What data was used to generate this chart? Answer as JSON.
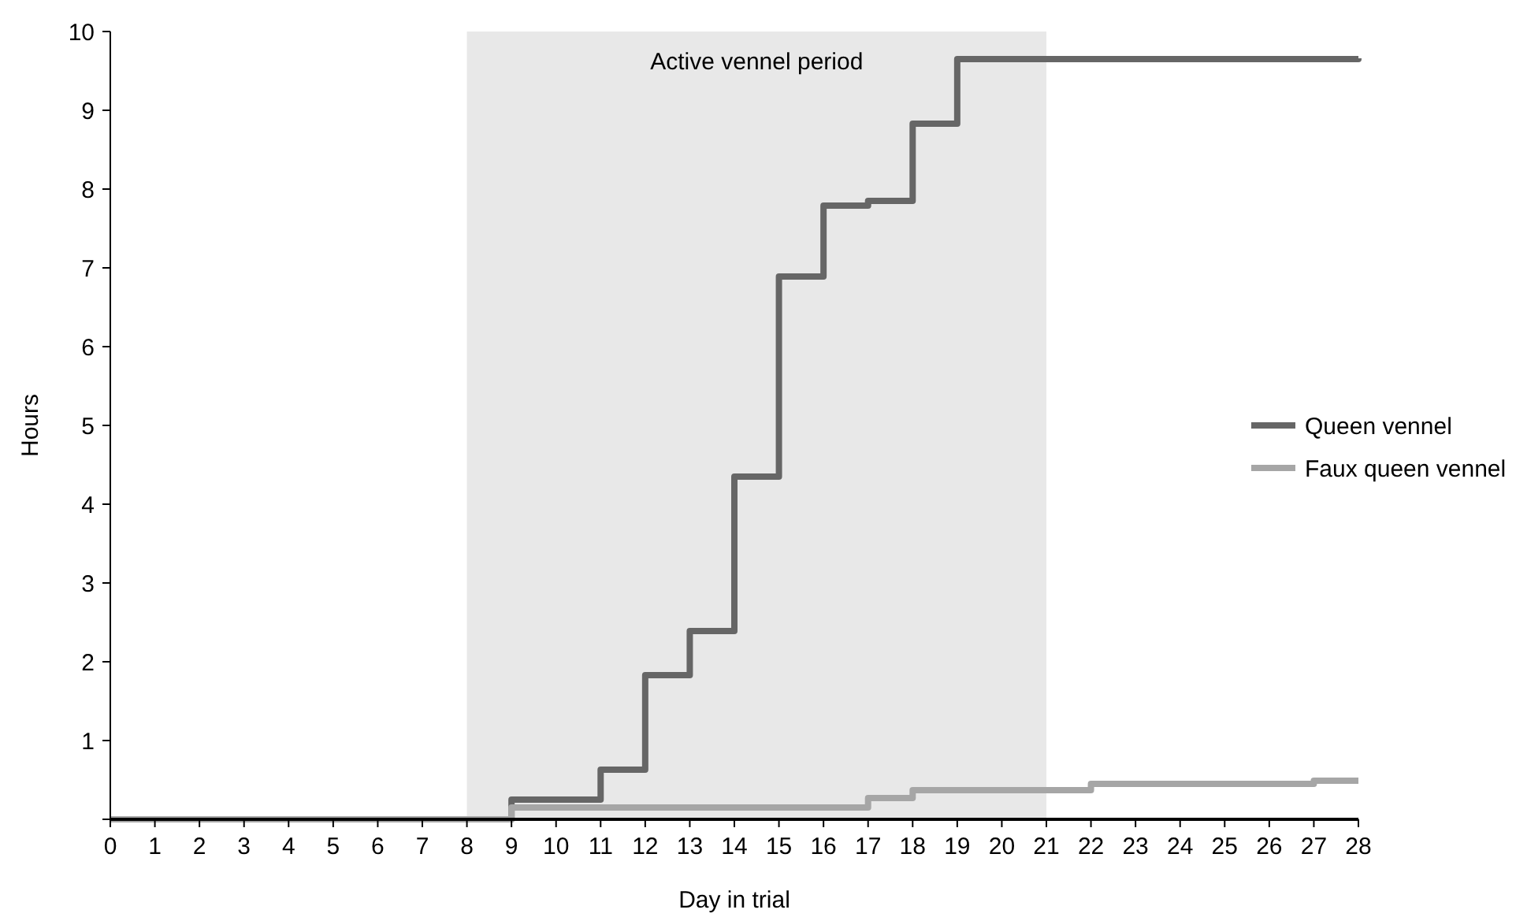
{
  "chart_data": {
    "type": "step",
    "xlabel": "Day in trial",
    "ylabel": "Hours",
    "x": [
      0,
      1,
      2,
      3,
      4,
      5,
      6,
      7,
      8,
      9,
      10,
      11,
      12,
      13,
      14,
      15,
      16,
      17,
      18,
      19,
      20,
      21,
      22,
      23,
      24,
      25,
      26,
      27,
      28
    ],
    "series": [
      {
        "name": "Queen vennel",
        "color": "#666666",
        "values": [
          0,
          0,
          0,
          0,
          0,
          0,
          0,
          0,
          0,
          0.25,
          0.25,
          0.63,
          1.83,
          2.39,
          4.35,
          6.89,
          7.79,
          7.85,
          8.83,
          9.65,
          9.65,
          9.65,
          9.65,
          9.65,
          9.65,
          9.65,
          9.65,
          9.65,
          9.66
        ]
      },
      {
        "name": "Faux queen vennel",
        "color": "#a6a6a6",
        "values": [
          0,
          0,
          0,
          0,
          0,
          0,
          0,
          0,
          0,
          0.15,
          0.15,
          0.15,
          0.15,
          0.15,
          0.15,
          0.15,
          0.15,
          0.27,
          0.37,
          0.37,
          0.37,
          0.37,
          0.45,
          0.45,
          0.45,
          0.45,
          0.45,
          0.49,
          0.49
        ]
      }
    ],
    "bands": [
      {
        "axis": "x",
        "from": 8,
        "to": 21,
        "label": "Active vennel period",
        "color": "#e8e8e8"
      }
    ],
    "xlim": [
      0,
      28
    ],
    "xticks": [
      0,
      1,
      2,
      3,
      4,
      5,
      6,
      7,
      8,
      9,
      10,
      11,
      12,
      13,
      14,
      15,
      16,
      17,
      18,
      19,
      20,
      21,
      22,
      23,
      24,
      25,
      26,
      27,
      28
    ],
    "ylim": [
      0,
      10
    ],
    "yticks": [
      {
        "value": 0,
        "label": null
      },
      1,
      2,
      3,
      4,
      5,
      6,
      7,
      8,
      9,
      10
    ],
    "legend": "right",
    "grid": false
  }
}
